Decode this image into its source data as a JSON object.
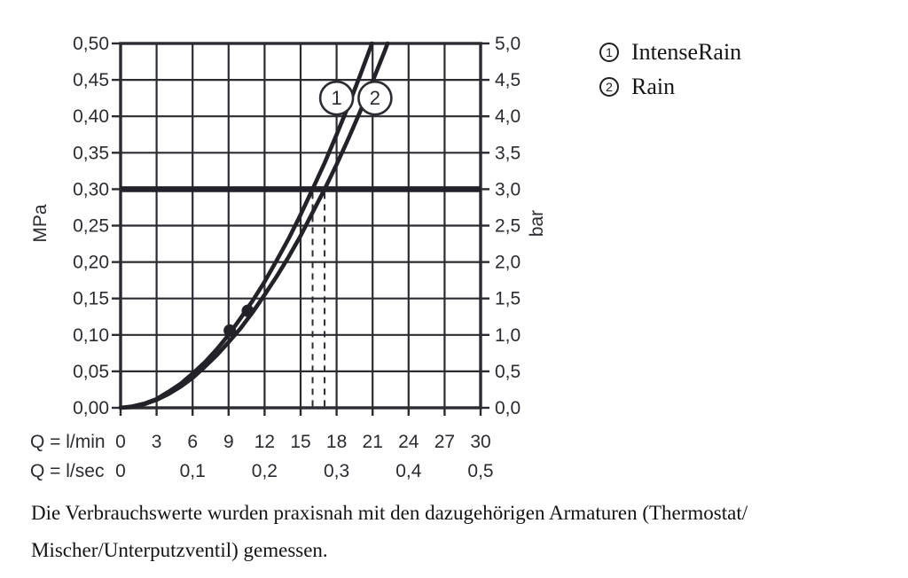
{
  "ink_color": "#2b2b31",
  "background_color": "#ffffff",
  "chart_data": {
    "type": "line",
    "title": "",
    "x_range": [
      0,
      30
    ],
    "y_range": [
      0,
      0.5
    ],
    "grid": true,
    "x_axis": {
      "row1_label": "Q = l/min",
      "row1_ticks": [
        {
          "label": "0",
          "value": 0
        },
        {
          "label": "3",
          "value": 3
        },
        {
          "label": "6",
          "value": 6
        },
        {
          "label": "9",
          "value": 9
        },
        {
          "label": "12",
          "value": 12
        },
        {
          "label": "15",
          "value": 15
        },
        {
          "label": "18",
          "value": 18
        },
        {
          "label": "21",
          "value": 21
        },
        {
          "label": "24",
          "value": 24
        },
        {
          "label": "27",
          "value": 27
        },
        {
          "label": "30",
          "value": 30
        }
      ],
      "row2_label": "Q = l/sec",
      "row2_ticks": [
        {
          "label": "0",
          "value": 0
        },
        {
          "label": "0,1",
          "value": 6
        },
        {
          "label": "0,2",
          "value": 12
        },
        {
          "label": "0,3",
          "value": 18
        },
        {
          "label": "0,4",
          "value": 24
        },
        {
          "label": "0,5",
          "value": 30
        }
      ]
    },
    "y_axis_left": {
      "unit": "MPa",
      "ticks": [
        {
          "label": "0,50",
          "value": 0.5
        },
        {
          "label": "0,45",
          "value": 0.45
        },
        {
          "label": "0,40",
          "value": 0.4
        },
        {
          "label": "0,35",
          "value": 0.35
        },
        {
          "label": "0,30",
          "value": 0.3
        },
        {
          "label": "0,25",
          "value": 0.25
        },
        {
          "label": "0,20",
          "value": 0.2
        },
        {
          "label": "0,15",
          "value": 0.15
        },
        {
          "label": "0,10",
          "value": 0.1
        },
        {
          "label": "0,05",
          "value": 0.05
        },
        {
          "label": "0,00",
          "value": 0.0
        }
      ]
    },
    "y_axis_right": {
      "unit": "bar",
      "ticks": [
        {
          "label": "5,0",
          "value": 0.5
        },
        {
          "label": "4,5",
          "value": 0.45
        },
        {
          "label": "4,0",
          "value": 0.4
        },
        {
          "label": "3,5",
          "value": 0.35
        },
        {
          "label": "3,0",
          "value": 0.3
        },
        {
          "label": "2,5",
          "value": 0.25
        },
        {
          "label": "2,0",
          "value": 0.2
        },
        {
          "label": "1,5",
          "value": 0.15
        },
        {
          "label": "1,0",
          "value": 0.1
        },
        {
          "label": "0,5",
          "value": 0.05
        },
        {
          "label": "0,0",
          "value": 0.0
        }
      ]
    },
    "series": [
      {
        "id": "1",
        "name": "IntenseRain",
        "flow_at_3bar_lmin": 16,
        "points": [
          [
            0,
            0
          ],
          [
            1,
            0.002
          ],
          [
            2,
            0.006
          ],
          [
            3,
            0.012
          ],
          [
            4,
            0.022
          ],
          [
            5,
            0.033
          ],
          [
            6,
            0.047
          ],
          [
            7,
            0.062
          ],
          [
            8,
            0.08
          ],
          [
            9,
            0.1
          ],
          [
            10,
            0.123
          ],
          [
            11,
            0.147
          ],
          [
            12,
            0.173
          ],
          [
            13,
            0.202
          ],
          [
            14,
            0.232
          ],
          [
            15,
            0.265
          ],
          [
            16,
            0.3
          ],
          [
            17,
            0.336
          ],
          [
            18,
            0.375
          ],
          [
            19,
            0.415
          ],
          [
            20,
            0.458
          ],
          [
            20.95,
            0.5
          ]
        ]
      },
      {
        "id": "2",
        "name": "Rain",
        "flow_at_3bar_lmin": 17,
        "points": [
          [
            0,
            0
          ],
          [
            1,
            0.001
          ],
          [
            2,
            0.005
          ],
          [
            3,
            0.011
          ],
          [
            4,
            0.019
          ],
          [
            5,
            0.029
          ],
          [
            6,
            0.041
          ],
          [
            7,
            0.056
          ],
          [
            8,
            0.072
          ],
          [
            9,
            0.09
          ],
          [
            10,
            0.109
          ],
          [
            11,
            0.131
          ],
          [
            12,
            0.155
          ],
          [
            13,
            0.18
          ],
          [
            14,
            0.207
          ],
          [
            15,
            0.236
          ],
          [
            16,
            0.268
          ],
          [
            17,
            0.3
          ],
          [
            18,
            0.334
          ],
          [
            19,
            0.37
          ],
          [
            20,
            0.408
          ],
          [
            21,
            0.448
          ],
          [
            22,
            0.489
          ],
          [
            22.25,
            0.5
          ]
        ]
      }
    ],
    "reference_pressure_line_mpa": 0.3,
    "dashed_flow_lines_lmin": [
      16,
      17
    ],
    "measured_points": [
      {
        "q_lmin": 9.1,
        "p_mpa": 0.106
      },
      {
        "q_lmin": 10.6,
        "p_mpa": 0.133
      }
    ],
    "curve_labels": [
      {
        "number": "1",
        "q_lmin": 18.0,
        "p_mpa": 0.425
      },
      {
        "number": "2",
        "q_lmin": 21.2,
        "p_mpa": 0.425
      }
    ]
  },
  "legend": {
    "items": [
      {
        "number": "1",
        "label": "IntenseRain"
      },
      {
        "number": "2",
        "label": "Rain"
      }
    ]
  },
  "caption": {
    "line1": "Die Verbrauchswerte wurden praxisnah mit den dazugehörigen Armaturen (Thermostat/",
    "line2": "Mischer/Unterputzventil) gemessen."
  }
}
